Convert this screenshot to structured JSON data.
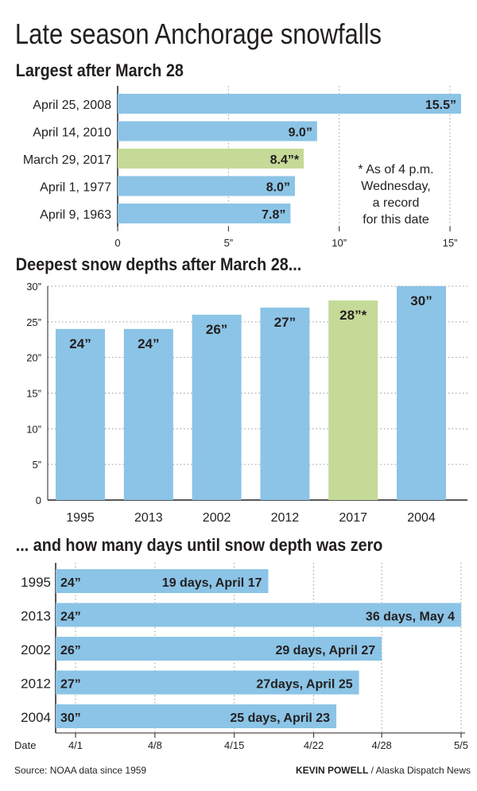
{
  "title": "Late season Anchorage snowfalls",
  "footer": {
    "source": "Source: NOAA data since 1959",
    "credit_name": "KEVIN POWELL",
    "credit_org": " / Alaska Dispatch News"
  },
  "colors": {
    "blue": "#8bc4e6",
    "green": "#c5da97",
    "text": "#231f20",
    "grid": "#9a9a9a"
  },
  "chart_data": [
    {
      "type": "bar",
      "orientation": "horizontal",
      "title": "Largest after March 28",
      "categories": [
        "April 25, 2008",
        "April 14, 2010",
        "March 29, 2017",
        "April 1, 1977",
        "April 9, 1963"
      ],
      "values": [
        15.5,
        9.0,
        8.4,
        8.0,
        7.8
      ],
      "value_labels": [
        "15.5”",
        "9.0”",
        "8.4”*",
        "8.0”",
        "7.8”"
      ],
      "highlight_index": 2,
      "xlim": [
        0,
        15.5
      ],
      "x_ticks": [
        0,
        5,
        10,
        15
      ],
      "x_tick_labels": [
        "0",
        "5”",
        "10”",
        "15”"
      ],
      "annotation": [
        "* As of 4 p.m.",
        "Wednesday,",
        "a record",
        "for this date"
      ],
      "grid": true
    },
    {
      "type": "bar",
      "orientation": "vertical",
      "title": "Deepest snow depths after March 28...",
      "categories": [
        "1995",
        "2013",
        "2002",
        "2012",
        "2017",
        "2004"
      ],
      "values": [
        24,
        24,
        26,
        27,
        28,
        30
      ],
      "value_labels": [
        "24”",
        "24”",
        "26”",
        "27”",
        "28”*",
        "30”"
      ],
      "highlight_index": 4,
      "ylim": [
        0,
        30
      ],
      "y_ticks": [
        0,
        5,
        10,
        15,
        20,
        25,
        30
      ],
      "y_tick_labels": [
        "0",
        "5”",
        "10”",
        "15”",
        "20”",
        "25”",
        "30”"
      ],
      "grid": true
    },
    {
      "type": "bar",
      "orientation": "horizontal",
      "title": "... and how many days until snow depth was zero",
      "categories": [
        "1995",
        "2013",
        "2002",
        "2012",
        "2004"
      ],
      "depth_labels": [
        "24”",
        "24”",
        "26”",
        "27”",
        "30”"
      ],
      "values": [
        19,
        36,
        29,
        27,
        25
      ],
      "value_labels": [
        "19 days, April 17",
        "36 days, May 4",
        "29 days, April 27",
        "27days, April 25",
        "25 days, April 23"
      ],
      "xlabel": "Date",
      "x_ticks": [
        0,
        7,
        14,
        21,
        27,
        34
      ],
      "x_tick_labels": [
        "4/1",
        "4/8",
        "4/15",
        "4/22",
        "4/28",
        "5/5"
      ],
      "xlim": [
        -2,
        34
      ],
      "grid": true
    }
  ]
}
